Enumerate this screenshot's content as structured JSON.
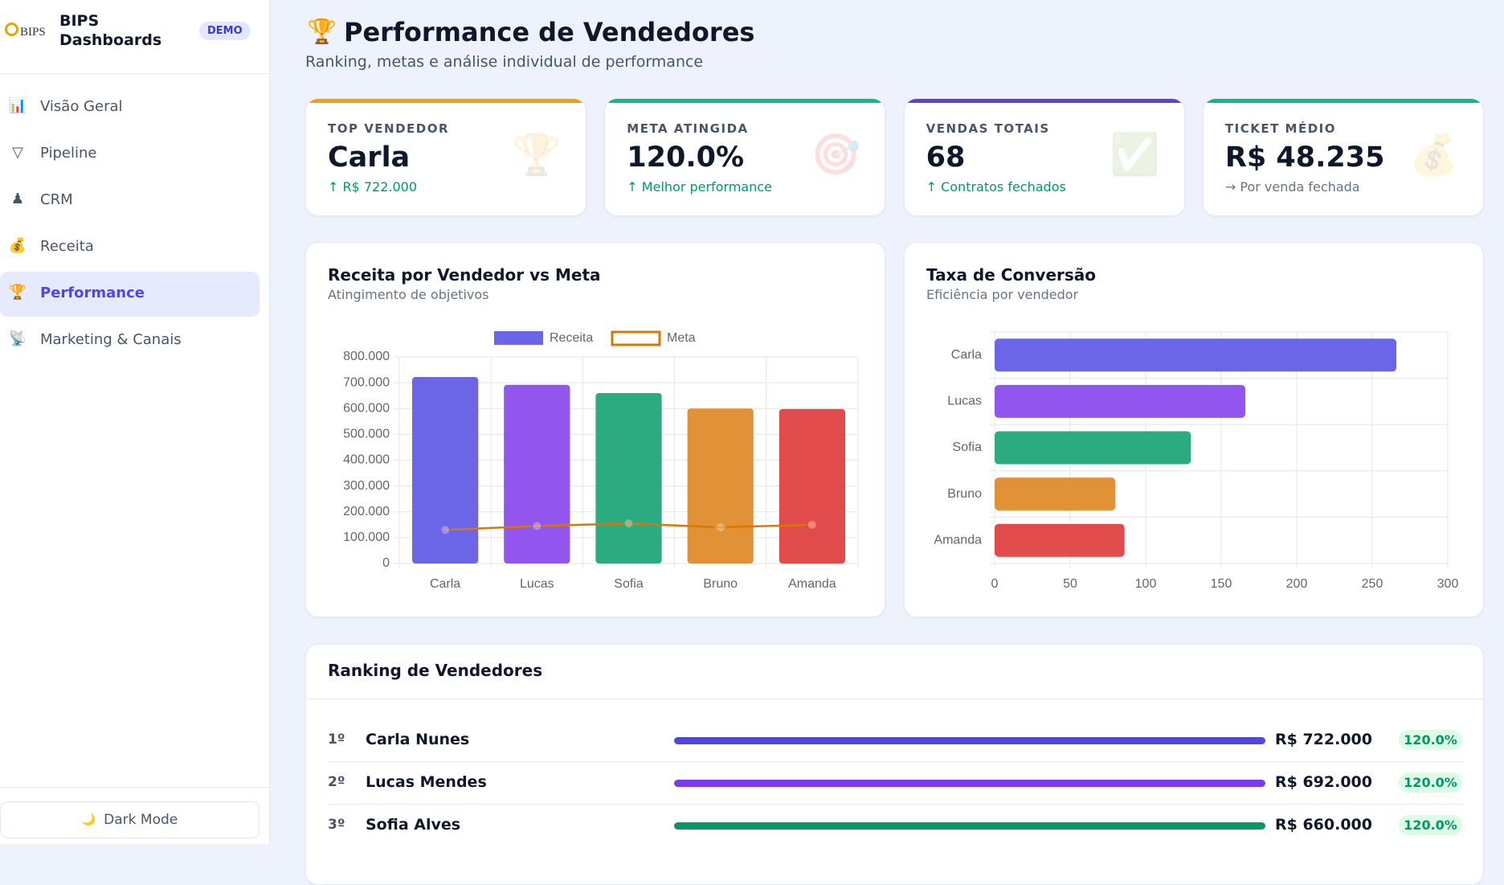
{
  "sidebar": {
    "logo": "BIPS",
    "brand": "BIPS Dashboards",
    "badge": "DEMO",
    "nav": [
      {
        "icon": "📊",
        "label": "Visão Geral"
      },
      {
        "icon": "▽",
        "label": "Pipeline"
      },
      {
        "icon": "♟",
        "label": "CRM"
      },
      {
        "icon": "💰",
        "label": "Receita"
      },
      {
        "icon": "🏆",
        "label": "Performance"
      },
      {
        "icon": "📡",
        "label": "Marketing & Canais"
      }
    ],
    "active": 4,
    "dark_mode": {
      "icon": "🌙",
      "label": "Dark Mode"
    }
  },
  "header": {
    "icon": "🏆",
    "title": "Performance de Vendedores",
    "subtitle": "Ranking, metas e análise individual de performance"
  },
  "kpis": [
    {
      "label": "TOP VENDEDOR",
      "value": "Carla",
      "note": "↑ R$ 722.000",
      "icon": "🏆",
      "accent": "#f59e0b",
      "note_color": "#059669"
    },
    {
      "label": "META ATINGIDA",
      "value": "120.0%",
      "note": "↑ Melhor performance",
      "icon": "🎯",
      "accent": "#10b981",
      "note_color": "#059669"
    },
    {
      "label": "VENDAS TOTAIS",
      "value": "68",
      "note": "↑ Contratos fechados",
      "icon": "✅",
      "accent": "#5b3fd6",
      "note_color": "#059669"
    },
    {
      "label": "TICKET MÉDIO",
      "value": "R$ 48.235",
      "note": "→ Por venda fechada",
      "icon": "💰",
      "accent": "#10b981",
      "note_color": "#64748b"
    }
  ],
  "charts": [
    {
      "type": "bar",
      "title": "Receita por Vendedor vs Meta",
      "subtitle": "Atingimento de objetivos",
      "categories": [
        "Carla",
        "Lucas",
        "Sofia",
        "Bruno",
        "Amanda"
      ],
      "series": [
        {
          "name": "Receita",
          "colors": [
            "#6b66e8",
            "#9256ee",
            "#2dab80",
            "#e19237",
            "#e24b4b"
          ],
          "values": [
            722000,
            692000,
            660000,
            600000,
            598000
          ]
        },
        {
          "name": "Meta",
          "color": "#d97706",
          "values": [
            130000,
            145000,
            155000,
            140000,
            150000
          ]
        }
      ],
      "ylim": [
        0,
        800000
      ],
      "yticks": [
        0,
        {
          "value": 100000,
          "label": "100.000"
        },
        {
          "value": 200000,
          "label": "200.000"
        },
        {
          "value": 300000,
          "label": "300.000"
        },
        {
          "value": 400000,
          "label": "400.000"
        },
        {
          "value": 500000,
          "label": "500.000"
        },
        {
          "value": 600000,
          "label": "600.000"
        },
        {
          "value": 700000,
          "label": "700.000"
        },
        {
          "value": 800000,
          "label": "800.000"
        }
      ],
      "grid": true
    },
    {
      "type": "hbar",
      "title": "Taxa de Conversão",
      "subtitle": "Eficiência por vendedor",
      "categories": [
        "Carla",
        "Lucas",
        "Sofia",
        "Bruno",
        "Amanda"
      ],
      "values": [
        266,
        166,
        130,
        80,
        86
      ],
      "colors": [
        "#6b66e8",
        "#9256ee",
        "#2dab80",
        "#e19237",
        "#e24b4b"
      ],
      "xlim": [
        0,
        300
      ],
      "xticks": [
        0,
        50,
        100,
        150,
        200,
        250,
        300
      ],
      "grid": true
    }
  ],
  "ranking": {
    "title": "Ranking de Vendedores",
    "rows": [
      {
        "rank": "1º",
        "name": "Carla Nunes",
        "revenue": "R$ 722.000",
        "pct": "120.0%",
        "color": "#4f46e5"
      },
      {
        "rank": "2º",
        "name": "Lucas Mendes",
        "revenue": "R$ 692.000",
        "pct": "120.0%",
        "color": "#7c3aed"
      },
      {
        "rank": "3º",
        "name": "Sofia Alves",
        "revenue": "R$ 660.000",
        "pct": "120.0%",
        "color": "#059669"
      }
    ]
  }
}
